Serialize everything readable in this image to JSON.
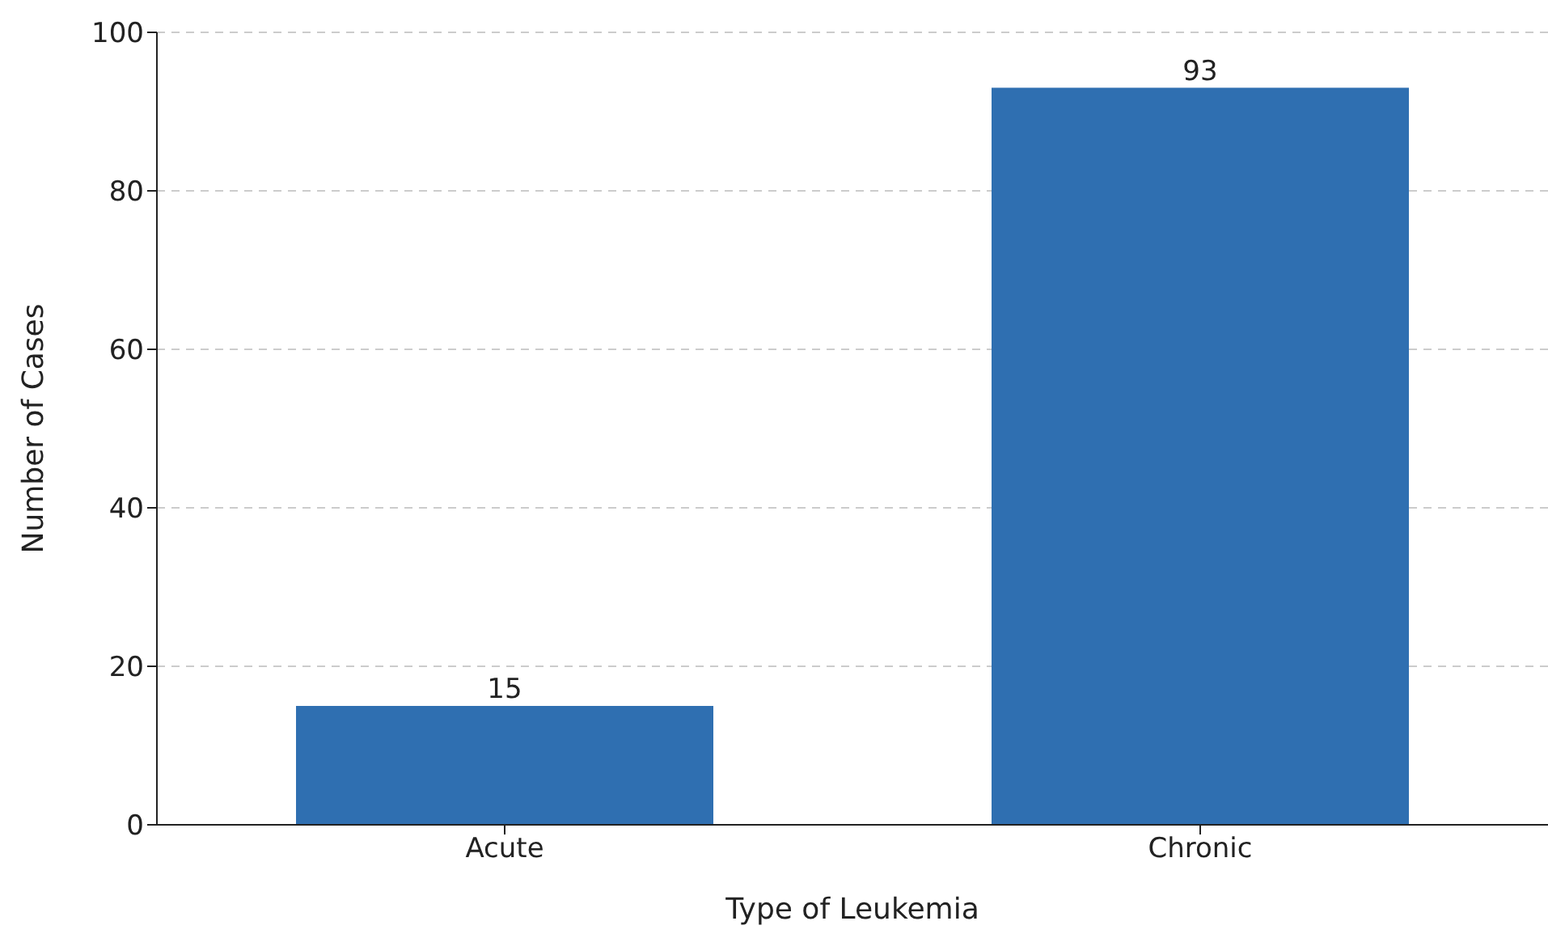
{
  "chart_data": {
    "type": "bar",
    "xlabel": "Type of Leukemia",
    "ylabel": "Number of Cases",
    "categories": [
      "Acute",
      "Chronic"
    ],
    "values": [
      15,
      93
    ],
    "color": "#2f6fb1",
    "ylim": [
      0,
      100
    ],
    "yticks": [
      0,
      20,
      40,
      60,
      80,
      100
    ],
    "grid": "y",
    "data_labels": true
  }
}
